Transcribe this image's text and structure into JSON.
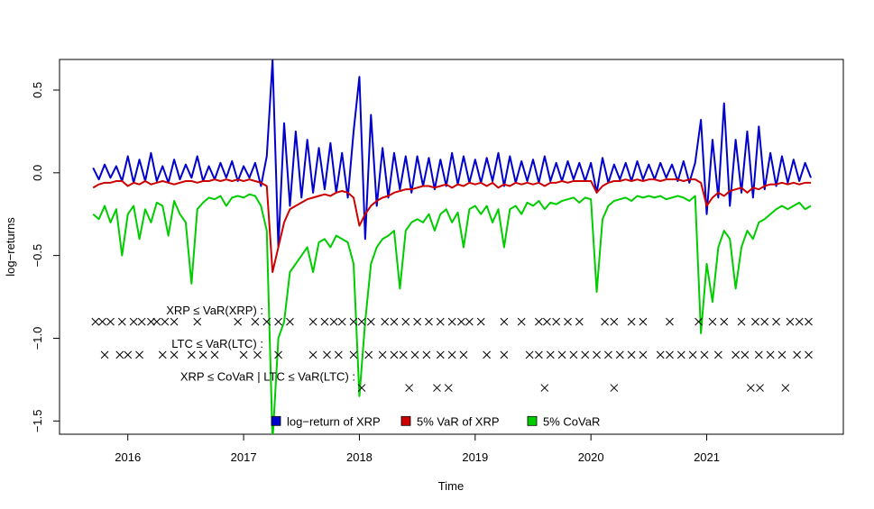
{
  "chart_data": {
    "type": "line",
    "x_label": "Time",
    "y_label": "log−returns",
    "xlim": [
      2015.41,
      2022.18
    ],
    "ylim": [
      -1.58,
      0.685
    ],
    "xticks": [
      2016,
      2017,
      2018,
      2019,
      2020,
      2021
    ],
    "yticks": [
      {
        "value": 0.5,
        "label": "0.5"
      },
      {
        "value": 0.0,
        "label": "0.0"
      },
      {
        "value": -0.5,
        "label": "−0.5"
      },
      {
        "value": -1.0,
        "label": "−1.0"
      },
      {
        "value": -1.5,
        "label": "−1.5"
      }
    ],
    "legend": "bottom",
    "x": [
      2015.7,
      2015.75,
      2015.8,
      2015.85,
      2015.9,
      2015.95,
      2016.0,
      2016.05,
      2016.1,
      2016.15,
      2016.2,
      2016.25,
      2016.3,
      2016.35,
      2016.4,
      2016.45,
      2016.5,
      2016.55,
      2016.6,
      2016.65,
      2016.7,
      2016.75,
      2016.8,
      2016.85,
      2016.9,
      2016.95,
      2017.0,
      2017.05,
      2017.1,
      2017.15,
      2017.2,
      2017.25,
      2017.3,
      2017.35,
      2017.4,
      2017.45,
      2017.5,
      2017.55,
      2017.6,
      2017.65,
      2017.7,
      2017.75,
      2017.8,
      2017.85,
      2017.9,
      2017.95,
      2018.0,
      2018.05,
      2018.1,
      2018.15,
      2018.2,
      2018.25,
      2018.3,
      2018.35,
      2018.4,
      2018.45,
      2018.5,
      2018.55,
      2018.6,
      2018.65,
      2018.7,
      2018.75,
      2018.8,
      2018.85,
      2018.9,
      2018.95,
      2019.0,
      2019.05,
      2019.1,
      2019.15,
      2019.2,
      2019.25,
      2019.3,
      2019.35,
      2019.4,
      2019.45,
      2019.5,
      2019.55,
      2019.6,
      2019.65,
      2019.7,
      2019.75,
      2019.8,
      2019.85,
      2019.9,
      2019.95,
      2020.0,
      2020.05,
      2020.1,
      2020.15,
      2020.2,
      2020.25,
      2020.3,
      2020.35,
      2020.4,
      2020.45,
      2020.5,
      2020.55,
      2020.6,
      2020.65,
      2020.7,
      2020.75,
      2020.8,
      2020.85,
      2020.9,
      2020.95,
      2021.0,
      2021.05,
      2021.1,
      2021.15,
      2021.2,
      2021.25,
      2021.3,
      2021.35,
      2021.4,
      2021.45,
      2021.5,
      2021.55,
      2021.6,
      2021.65,
      2021.7,
      2021.75,
      2021.8,
      2021.85,
      2021.9
    ],
    "series": [
      {
        "name": "log−return of XRP",
        "color": "#0000cc",
        "values": [
          0.03,
          -0.04,
          0.05,
          -0.03,
          0.04,
          -0.05,
          0.1,
          -0.06,
          0.08,
          -0.05,
          0.12,
          -0.05,
          0.04,
          -0.06,
          0.08,
          -0.04,
          0.05,
          -0.03,
          0.1,
          -0.05,
          0.04,
          -0.04,
          0.06,
          -0.03,
          0.07,
          -0.05,
          0.04,
          -0.03,
          0.06,
          -0.08,
          0.1,
          0.68,
          -0.45,
          0.3,
          -0.2,
          0.25,
          -0.15,
          0.2,
          -0.12,
          0.15,
          -0.1,
          0.18,
          -0.12,
          0.12,
          -0.15,
          0.25,
          0.58,
          -0.4,
          0.35,
          -0.2,
          0.15,
          -0.15,
          0.12,
          -0.1,
          0.1,
          -0.12,
          0.1,
          -0.08,
          0.09,
          -0.1,
          0.08,
          -0.08,
          0.12,
          -0.07,
          0.1,
          -0.06,
          0.08,
          -0.06,
          0.09,
          -0.05,
          0.12,
          -0.08,
          0.1,
          -0.06,
          0.07,
          -0.05,
          0.08,
          -0.06,
          0.1,
          -0.05,
          0.06,
          -0.05,
          0.07,
          -0.04,
          0.06,
          -0.05,
          0.06,
          -0.12,
          0.09,
          -0.06,
          0.05,
          -0.04,
          0.06,
          -0.05,
          0.07,
          -0.04,
          0.05,
          -0.04,
          0.06,
          -0.03,
          0.05,
          -0.05,
          0.07,
          -0.06,
          0.06,
          0.32,
          -0.25,
          0.2,
          -0.15,
          0.42,
          -0.2,
          0.2,
          -0.12,
          0.25,
          -0.15,
          0.28,
          -0.1,
          0.12,
          -0.08,
          0.1,
          -0.06,
          0.08,
          -0.05,
          0.06,
          -0.03
        ]
      },
      {
        "name": "5% VaR of XRP",
        "color": "#cc0000",
        "values": [
          -0.09,
          -0.07,
          -0.06,
          -0.06,
          -0.05,
          -0.05,
          -0.08,
          -0.06,
          -0.07,
          -0.05,
          -0.07,
          -0.06,
          -0.05,
          -0.06,
          -0.07,
          -0.06,
          -0.05,
          -0.05,
          -0.06,
          -0.05,
          -0.05,
          -0.04,
          -0.05,
          -0.04,
          -0.05,
          -0.04,
          -0.05,
          -0.04,
          -0.05,
          -0.06,
          -0.08,
          -0.6,
          -0.45,
          -0.3,
          -0.22,
          -0.2,
          -0.18,
          -0.16,
          -0.15,
          -0.14,
          -0.13,
          -0.14,
          -0.12,
          -0.11,
          -0.12,
          -0.15,
          -0.32,
          -0.25,
          -0.2,
          -0.17,
          -0.15,
          -0.14,
          -0.12,
          -0.11,
          -0.1,
          -0.1,
          -0.09,
          -0.08,
          -0.08,
          -0.09,
          -0.08,
          -0.07,
          -0.09,
          -0.07,
          -0.08,
          -0.06,
          -0.07,
          -0.06,
          -0.08,
          -0.06,
          -0.09,
          -0.07,
          -0.08,
          -0.06,
          -0.07,
          -0.06,
          -0.07,
          -0.06,
          -0.08,
          -0.06,
          -0.06,
          -0.05,
          -0.06,
          -0.05,
          -0.05,
          -0.05,
          -0.05,
          -0.12,
          -0.08,
          -0.06,
          -0.05,
          -0.05,
          -0.04,
          -0.05,
          -0.04,
          -0.05,
          -0.04,
          -0.04,
          -0.05,
          -0.04,
          -0.04,
          -0.04,
          -0.05,
          -0.04,
          -0.04,
          -0.06,
          -0.2,
          -0.15,
          -0.12,
          -0.14,
          -0.11,
          -0.1,
          -0.09,
          -0.12,
          -0.09,
          -0.1,
          -0.08,
          -0.07,
          -0.07,
          -0.06,
          -0.07,
          -0.06,
          -0.07,
          -0.06,
          -0.06
        ]
      },
      {
        "name": "5% CoVaR",
        "color": "#00cc00",
        "values": [
          -0.25,
          -0.28,
          -0.2,
          -0.3,
          -0.22,
          -0.5,
          -0.25,
          -0.2,
          -0.4,
          -0.22,
          -0.3,
          -0.18,
          -0.2,
          -0.38,
          -0.17,
          -0.25,
          -0.3,
          -0.67,
          -0.22,
          -0.18,
          -0.15,
          -0.16,
          -0.14,
          -0.2,
          -0.15,
          -0.14,
          -0.15,
          -0.13,
          -0.14,
          -0.2,
          -0.35,
          -1.62,
          -1.0,
          -0.9,
          -0.6,
          -0.55,
          -0.5,
          -0.45,
          -0.6,
          -0.42,
          -0.4,
          -0.45,
          -0.38,
          -0.4,
          -0.42,
          -0.55,
          -1.35,
          -0.9,
          -0.55,
          -0.45,
          -0.4,
          -0.38,
          -0.35,
          -0.7,
          -0.35,
          -0.3,
          -0.28,
          -0.3,
          -0.25,
          -0.35,
          -0.25,
          -0.22,
          -0.3,
          -0.24,
          -0.45,
          -0.22,
          -0.2,
          -0.25,
          -0.2,
          -0.3,
          -0.22,
          -0.45,
          -0.22,
          -0.2,
          -0.25,
          -0.18,
          -0.2,
          -0.17,
          -0.22,
          -0.18,
          -0.19,
          -0.17,
          -0.16,
          -0.15,
          -0.18,
          -0.15,
          -0.16,
          -0.72,
          -0.28,
          -0.2,
          -0.17,
          -0.16,
          -0.15,
          -0.17,
          -0.14,
          -0.15,
          -0.14,
          -0.15,
          -0.14,
          -0.16,
          -0.15,
          -0.14,
          -0.15,
          -0.17,
          -0.14,
          -0.97,
          -0.55,
          -0.78,
          -0.45,
          -0.35,
          -0.4,
          -0.7,
          -0.45,
          -0.35,
          -0.4,
          -0.3,
          -0.28,
          -0.25,
          -0.22,
          -0.2,
          -0.22,
          -0.2,
          -0.18,
          -0.22,
          -0.2
        ]
      }
    ],
    "exceedances": [
      {
        "label": "XRP ≤ VaR(XRP) :",
        "level": -0.9,
        "x": [
          2015.72,
          2015.78,
          2015.85,
          2015.95,
          2016.05,
          2016.12,
          2016.2,
          2016.25,
          2016.32,
          2016.4,
          2016.6,
          2016.95,
          2017.1,
          2017.2,
          2017.3,
          2017.4,
          2017.6,
          2017.7,
          2017.78,
          2017.85,
          2017.95,
          2018.02,
          2018.1,
          2018.22,
          2018.3,
          2018.4,
          2018.5,
          2018.6,
          2018.7,
          2018.8,
          2018.88,
          2018.95,
          2019.05,
          2019.25,
          2019.4,
          2019.55,
          2019.62,
          2019.7,
          2019.8,
          2019.9,
          2020.12,
          2020.2,
          2020.35,
          2020.45,
          2020.68,
          2020.93,
          2021.05,
          2021.15,
          2021.3,
          2021.42,
          2021.5,
          2021.6,
          2021.72,
          2021.8,
          2021.88
        ]
      },
      {
        "label": "LTC ≤ VaR(LTC) :",
        "level": -1.1,
        "x": [
          2015.8,
          2015.93,
          2016.0,
          2016.1,
          2016.3,
          2016.4,
          2016.55,
          2016.65,
          2016.75,
          2017.0,
          2017.12,
          2017.3,
          2017.6,
          2017.72,
          2017.82,
          2017.95,
          2018.08,
          2018.2,
          2018.3,
          2018.38,
          2018.48,
          2018.58,
          2018.7,
          2018.8,
          2018.9,
          2019.1,
          2019.25,
          2019.47,
          2019.55,
          2019.65,
          2019.75,
          2019.85,
          2019.95,
          2020.05,
          2020.15,
          2020.25,
          2020.35,
          2020.45,
          2020.6,
          2020.68,
          2020.78,
          2020.88,
          2020.98,
          2021.1,
          2021.25,
          2021.33,
          2021.45,
          2021.55,
          2021.65,
          2021.78,
          2021.88
        ]
      },
      {
        "label": "XRP ≤ CoVaR | LTC ≤ VaR(LTC) :",
        "level": -1.3,
        "x": [
          2018.02,
          2018.43,
          2018.67,
          2018.77,
          2019.6,
          2020.2,
          2021.38,
          2021.46,
          2021.68
        ]
      }
    ]
  }
}
